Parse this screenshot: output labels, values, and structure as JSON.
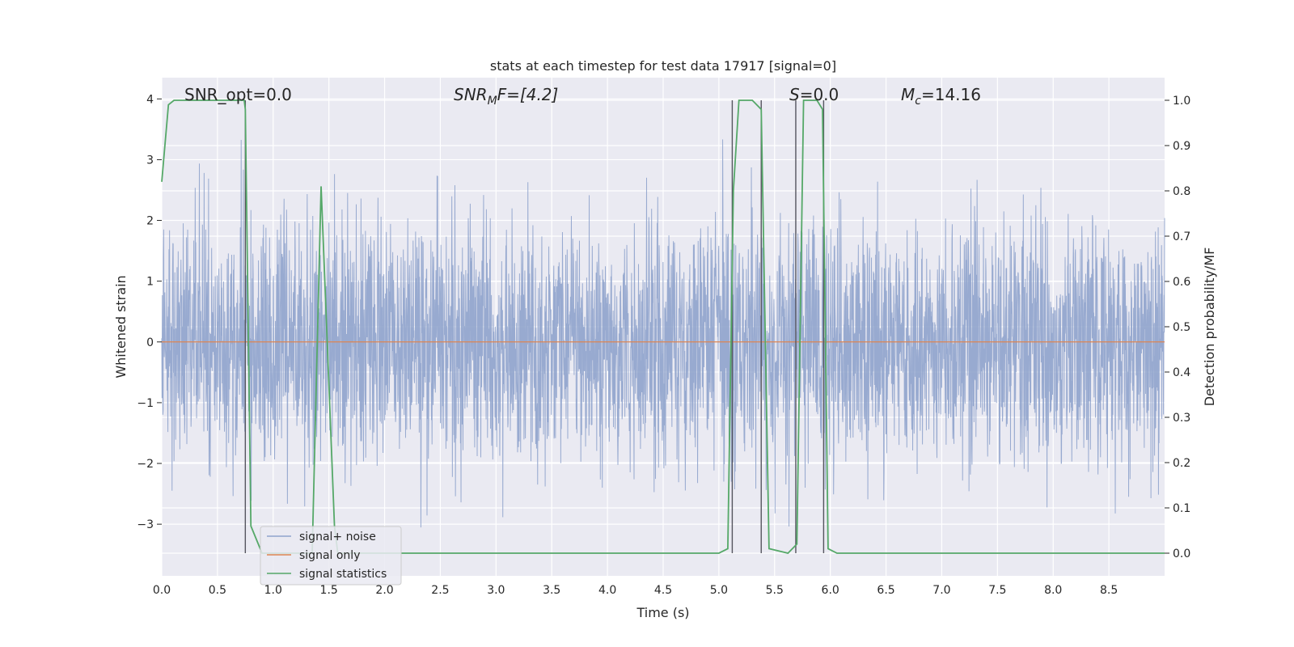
{
  "chart_data": {
    "type": "line",
    "title": "stats at each timestep for test data 17917 [signal=0]",
    "xlabel": "Time (s)",
    "ylabel": "Whitened strain",
    "y2label": "Detection probability/MF",
    "xlim": [
      0.0,
      9.0
    ],
    "ylim": [
      -3.85,
      4.35
    ],
    "y2lim": [
      -0.05,
      1.05
    ],
    "xticks": [
      "0.0",
      "0.5",
      "1.0",
      "1.5",
      "2.0",
      "2.5",
      "3.0",
      "3.5",
      "4.0",
      "4.5",
      "5.0",
      "5.5",
      "6.0",
      "6.5",
      "7.0",
      "7.5",
      "8.0",
      "8.5"
    ],
    "yticks": [
      "4",
      "3",
      "2",
      "1",
      "0",
      "−1",
      "−2",
      "−3"
    ],
    "y2ticks": [
      "1.0",
      "0.9",
      "0.8",
      "0.7",
      "0.6",
      "0.5",
      "0.4",
      "0.3",
      "0.2",
      "0.1",
      "0.0"
    ],
    "grid": true,
    "legend_position": "lower-left",
    "annotations": {
      "snr_opt": "SNR_opt=0.0",
      "snr_mf_main": "SNR",
      "snr_mf_sub": "M",
      "snr_mf_rest": "F=[4.2]",
      "s_main": "S",
      "s_rest": "=0.0",
      "mc_main": "M",
      "mc_sub": "c",
      "mc_rest": "=14.16"
    },
    "series": [
      {
        "name": "signal+ noise",
        "color": "#8fa3cc",
        "kind": "noise",
        "amplitude_std": 1.0,
        "approx_range": [
          -3.5,
          3.6
        ]
      },
      {
        "name": "signal only",
        "color": "#dd8452",
        "kind": "constant",
        "value": 0.0
      },
      {
        "name": "signal statistics",
        "color": "#55a868",
        "axis": "right",
        "points": [
          [
            0.0,
            0.82
          ],
          [
            0.06,
            0.99
          ],
          [
            0.11,
            1.0
          ],
          [
            0.5,
            1.0
          ],
          [
            0.74,
            1.0
          ],
          [
            0.75,
            0.98
          ],
          [
            0.8,
            0.06
          ],
          [
            0.9,
            0.0
          ],
          [
            1.35,
            0.0
          ],
          [
            1.43,
            0.81
          ],
          [
            1.55,
            0.06
          ],
          [
            1.58,
            0.0
          ],
          [
            5.0,
            0.0
          ],
          [
            5.08,
            0.01
          ],
          [
            5.13,
            0.8
          ],
          [
            5.18,
            1.0
          ],
          [
            5.3,
            1.0
          ],
          [
            5.38,
            0.98
          ],
          [
            5.45,
            0.01
          ],
          [
            5.62,
            0.0
          ],
          [
            5.7,
            0.02
          ],
          [
            5.76,
            1.0
          ],
          [
            5.88,
            1.0
          ],
          [
            5.93,
            0.98
          ],
          [
            5.98,
            0.01
          ],
          [
            6.06,
            0.0
          ],
          [
            9.0,
            0.0
          ]
        ]
      }
    ],
    "event_markers": [
      0.75,
      5.12,
      5.38,
      5.69,
      5.94
    ],
    "event_marker_color": "#55555f"
  }
}
